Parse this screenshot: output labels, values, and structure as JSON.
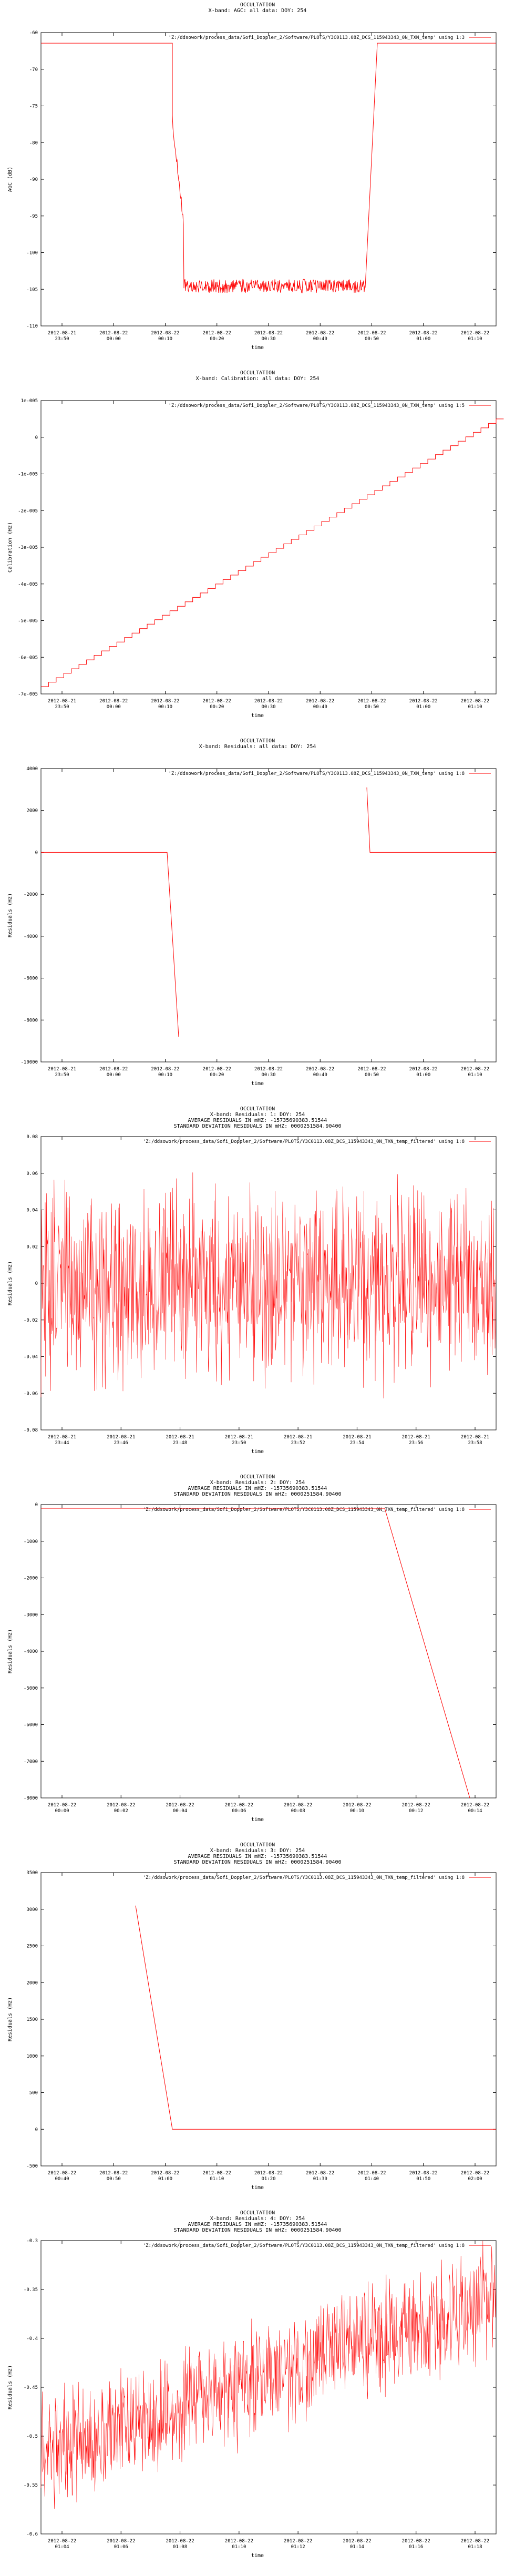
{
  "style": {
    "series_color": "#ff0000",
    "axis_color": "#000000",
    "background": "#ffffff"
  },
  "charts": [
    {
      "type": "line",
      "title_lines": [
        "OCCULTATION",
        "X-band: AGC: all data: DOY: 254"
      ],
      "xlabel": "time",
      "ylabel": "AGC (dB)",
      "legend": "'Z:/ddsowork/process_data/Sofi_Doppler_2/Software/PLOTS/Y3C0113.08Z_DCS_115943343_0N_TXN_temp' using 1:3",
      "xticks": [
        "2012-08-21\n23:50",
        "2012-08-22\n00:00",
        "2012-08-22\n00:10",
        "2012-08-22\n00:20",
        "2012-08-22\n00:30",
        "2012-08-22\n00:40",
        "2012-08-22\n00:50",
        "2012-08-22\n01:00",
        "2012-08-22\n01:10"
      ],
      "yticks": [
        "-60",
        "-70",
        "-75",
        "-80",
        "-90",
        "-95",
        "-100",
        "-105",
        "-110"
      ],
      "chart_data": {
        "type": "line",
        "x": [
          "23:47",
          "00:13",
          "00:17",
          "00:51",
          "00:53",
          "01:17"
        ],
        "ylim": [
          -110,
          -60
        ],
        "series": [
          {
            "values": [
              -61.8,
              -61.8,
              -103.2,
              -103.2,
              -61.8,
              -61.8
            ]
          }
        ]
      }
    },
    {
      "type": "line",
      "title_lines": [
        "OCCULTATION",
        "X-band: Calibration: all data: DOY: 254"
      ],
      "xlabel": "time",
      "ylabel": "Calibration (Hz)",
      "legend": "'Z:/ddsowork/process_data/Sofi_Doppler_2/Software/PLOTS/Y3C0113.08Z_DCS_115943343_0N_TXN_temp' using 1:5",
      "xticks": [
        "2012-08-21\n23:50",
        "2012-08-22\n00:00",
        "2012-08-22\n00:10",
        "2012-08-22\n00:20",
        "2012-08-22\n00:30",
        "2012-08-22\n00:40",
        "2012-08-22\n00:50",
        "2012-08-22\n01:00",
        "2012-08-22\n01:10"
      ],
      "yticks": [
        "1e-005",
        "0",
        "-1e-005",
        "-2e-005",
        "-3e-005",
        "-4e-005",
        "-5e-005",
        "-6e-005",
        "-7e-005"
      ],
      "chart_data": {
        "type": "line",
        "x": [
          "23:47",
          "01:17"
        ],
        "ylim": [
          -7e-05,
          1e-05
        ],
        "series": [
          {
            "values": [
              -6.8e-05,
              5e-06
            ]
          }
        ]
      }
    },
    {
      "type": "line",
      "title_lines": [
        "OCCULTATION",
        "X-band: Residuals: all data: DOY: 254"
      ],
      "xlabel": "time",
      "ylabel": "Residuals (Hz)",
      "legend": "'Z:/ddsowork/process_data/Sofi_Doppler_2/Software/PLOTS/Y3C0113.08Z_DCS_115943343_0N_TXN_temp' using 1:8",
      "xticks": [
        "2012-08-21\n23:50",
        "2012-08-22\n00:00",
        "2012-08-22\n00:10",
        "2012-08-22\n00:20",
        "2012-08-22\n00:30",
        "2012-08-22\n00:40",
        "2012-08-22\n00:50",
        "2012-08-22\n01:00",
        "2012-08-22\n01:10"
      ],
      "yticks": [
        "4000",
        "2000",
        "0",
        "-2000",
        "-4000",
        "-6000",
        "-8000",
        "-10000"
      ],
      "chart_data": {
        "type": "line",
        "x": [
          "23:47",
          "00:11",
          "00:14",
          "00:51",
          "00:52",
          "01:17"
        ],
        "ylim": [
          -10000,
          4000
        ],
        "series": [
          {
            "values": [
              0,
              0,
              -8800,
              3100,
              0,
              0
            ]
          }
        ]
      }
    },
    {
      "type": "line",
      "title_lines": [
        "OCCULTATION",
        "X-band: Residuals: 1: DOY: 254",
        "AVERAGE RESIDUALS IN mHZ: -15735690383.51544",
        "STANDARD DEVIATION RESIDUALS IN mHZ: 0000251584.90400"
      ],
      "xlabel": "time",
      "ylabel": "Residuals (Hz)",
      "legend": "'Z:/ddsowork/process_data/Sofi_Doppler_2/Software/PLOTS/Y3C0113.08Z_DCS_115943343_0N_TXN_temp_filtered' using 1:8",
      "xticks": [
        "2012-08-21\n23:44",
        "2012-08-21\n23:46",
        "2012-08-21\n23:48",
        "2012-08-21\n23:50",
        "2012-08-21\n23:52",
        "2012-08-21\n23:54",
        "2012-08-21\n23:56",
        "2012-08-21\n23:58"
      ],
      "yticks": [
        "0.08",
        "0.06",
        "0.04",
        "0.02",
        "0",
        "-0.02",
        "-0.04",
        "-0.06",
        "-0.08"
      ],
      "chart_data": {
        "type": "line",
        "x": [
          "23:43:40",
          "23:59:40"
        ],
        "ylim": [
          -0.08,
          0.08
        ],
        "series": [
          {
            "values": [
              0.0,
              0.0
            ]
          }
        ]
      }
    },
    {
      "type": "line",
      "title_lines": [
        "OCCULTATION",
        "X-band: Residuals: 2: DOY: 254",
        "AVERAGE RESIDUALS IN mHZ: -15735690383.51544",
        "STANDARD DEVIATION RESIDUALS IN mHZ: 0000251584.90400"
      ],
      "xlabel": "time",
      "ylabel": "Residuals (Hz)",
      "legend": "'Z:/ddsowork/process_data/Sofi_Doppler_2/Software/PLOTS/Y3C0113.08Z_DCS_115943343_0N_TXN_temp_filtered' using 1:8",
      "xticks": [
        "2012-08-22\n00:00",
        "2012-08-22\n00:02",
        "2012-08-22\n00:04",
        "2012-08-22\n00:06",
        "2012-08-22\n00:08",
        "2012-08-22\n00:10",
        "2012-08-22\n00:12",
        "2012-08-22\n00:14"
      ],
      "yticks": [
        "0",
        "-1000",
        "-2000",
        "-3000",
        "-4000",
        "-5000",
        "-6000",
        "-7000",
        "-8000"
      ],
      "chart_data": {
        "type": "line",
        "x": [
          "23:59:10",
          "00:11:10",
          "00:14:10"
        ],
        "ylim": [
          -8000,
          0
        ],
        "series": [
          {
            "values": [
              -100,
              -100,
              -8000
            ]
          }
        ]
      }
    },
    {
      "type": "line",
      "title_lines": [
        "OCCULTATION",
        "X-band: Residuals: 3: DOY: 254",
        "AVERAGE RESIDUALS IN mHZ: -15735690383.51544",
        "STANDARD DEVIATION RESIDUALS IN mHZ: 0000251584.90400"
      ],
      "xlabel": "time",
      "ylabel": "Residuals (Hz)",
      "legend": "'Z:/ddsowork/process_data/Sofi_Doppler_2/Software/PLOTS/Y3C0113.08Z_DCS_115943343_0N_TXN_temp_filtered' using 1:8",
      "xticks": [
        "2012-08-22\n00:40",
        "2012-08-22\n00:50",
        "2012-08-22\n01:00",
        "2012-08-22\n01:10",
        "2012-08-22\n01:20",
        "2012-08-22\n01:30",
        "2012-08-22\n01:40",
        "2012-08-22\n01:50",
        "2012-08-22\n02:00"
      ],
      "yticks": [
        "3500",
        "3000",
        "2500",
        "2000",
        "1500",
        "1000",
        "500",
        "0",
        "-500"
      ],
      "chart_data": {
        "type": "line",
        "x": [
          "00:51",
          "00:58",
          "02:00"
        ],
        "ylim": [
          -500,
          3500
        ],
        "series": [
          {
            "values": [
              3050,
              0,
              0
            ]
          }
        ]
      }
    },
    {
      "type": "line",
      "title_lines": [
        "OCCULTATION",
        "X-band: Residuals: 4: DOY: 254",
        "AVERAGE RESIDUALS IN mHZ: -15735690383.51544",
        "STANDARD DEVIATION RESIDUALS IN mHZ: 0000251584.90400"
      ],
      "xlabel": "time",
      "ylabel": "Residuals (Hz)",
      "legend": "'Z:/ddsowork/process_data/Sofi_Doppler_2/Software/PLOTS/Y3C0113.08Z_DCS_115943343_0N_TXN_temp_filtered' using 1:8",
      "xticks": [
        "2012-08-22\n01:04",
        "2012-08-22\n01:06",
        "2012-08-22\n01:08",
        "2012-08-22\n01:10",
        "2012-08-22\n01:12",
        "2012-08-22\n01:14",
        "2012-08-22\n01:16",
        "2012-08-22\n01:18"
      ],
      "yticks": [
        "-0.3",
        "-0.35",
        "-0.4",
        "-0.45",
        "-0.5",
        "-0.55",
        "-0.6"
      ],
      "chart_data": {
        "type": "line",
        "x": [
          "01:03:00",
          "01:18:40"
        ],
        "ylim": [
          -0.6,
          -0.3
        ],
        "series": [
          {
            "values": [
              -0.52,
              -0.36
            ]
          }
        ]
      }
    }
  ]
}
